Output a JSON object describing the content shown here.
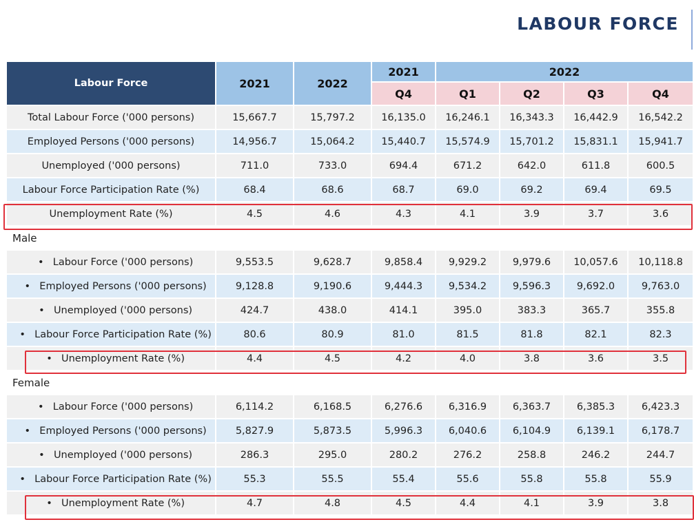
{
  "page_title": "LABOUR FORCE",
  "table": {
    "corner_label": "Labour Force",
    "year_2021": "2021",
    "year_2022": "2022",
    "q_2021_year": "2021",
    "q_2022_year": "2022",
    "quarters": [
      "Q4",
      "Q1",
      "Q2",
      "Q3",
      "Q4"
    ],
    "overall": [
      {
        "label": "Total Labour Force ('000 persons)",
        "values": [
          "15,667.7",
          "15,797.2",
          "16,135.0",
          "16,246.1",
          "16,343.3",
          "16,442.9",
          "16,542.2"
        ]
      },
      {
        "label": "Employed Persons ('000 persons)",
        "values": [
          "14,956.7",
          "15,064.2",
          "15,440.7",
          "15,574.9",
          "15,701.2",
          "15,831.1",
          "15,941.7"
        ]
      },
      {
        "label": "Unemployed ('000 persons)",
        "values": [
          "711.0",
          "733.0",
          "694.4",
          "671.2",
          "642.0",
          "611.8",
          "600.5"
        ]
      },
      {
        "label": "Labour Force Participation Rate (%)",
        "values": [
          "68.4",
          "68.6",
          "68.7",
          "69.0",
          "69.2",
          "69.4",
          "69.5"
        ]
      },
      {
        "label": "Unemployment Rate (%)",
        "values": [
          "4.5",
          "4.6",
          "4.3",
          "4.1",
          "3.9",
          "3.7",
          "3.6"
        ]
      }
    ],
    "male_label": "Male",
    "male": [
      {
        "label": "Labour Force ('000 persons)",
        "values": [
          "9,553.5",
          "9,628.7",
          "9,858.4",
          "9,929.2",
          "9,979.6",
          "10,057.6",
          "10,118.8"
        ]
      },
      {
        "label": "Employed Persons ('000 persons)",
        "values": [
          "9,128.8",
          "9,190.6",
          "9,444.3",
          "9,534.2",
          "9,596.3",
          "9,692.0",
          "9,763.0"
        ]
      },
      {
        "label": "Unemployed ('000 persons)",
        "values": [
          "424.7",
          "438.0",
          "414.1",
          "395.0",
          "383.3",
          "365.7",
          "355.8"
        ]
      },
      {
        "label": "Labour Force Participation Rate (%)",
        "values": [
          "80.6",
          "80.9",
          "81.0",
          "81.5",
          "81.8",
          "82.1",
          "82.3"
        ]
      },
      {
        "label": "Unemployment Rate (%)",
        "values": [
          "4.4",
          "4.5",
          "4.2",
          "4.0",
          "3.8",
          "3.6",
          "3.5"
        ]
      }
    ],
    "female_label": "Female",
    "female": [
      {
        "label": "Labour Force ('000 persons)",
        "values": [
          "6,114.2",
          "6,168.5",
          "6,276.6",
          "6,316.9",
          "6,363.7",
          "6,385.3",
          "6,423.3"
        ]
      },
      {
        "label": "Employed Persons ('000 persons)",
        "values": [
          "5,827.9",
          "5,873.5",
          "5,996.3",
          "6,040.6",
          "6,104.9",
          "6,139.1",
          "6,178.7"
        ]
      },
      {
        "label": "Unemployed ('000 persons)",
        "values": [
          "286.3",
          "295.0",
          "280.2",
          "276.2",
          "258.8",
          "246.2",
          "244.7"
        ]
      },
      {
        "label": "Labour Force Participation Rate (%)",
        "values": [
          "55.3",
          "55.5",
          "55.4",
          "55.6",
          "55.8",
          "55.8",
          "55.9"
        ]
      },
      {
        "label": "Unemployment Rate (%)",
        "values": [
          "4.7",
          "4.8",
          "4.5",
          "4.4",
          "4.1",
          "3.9",
          "3.8"
        ]
      }
    ],
    "bullet": "•",
    "highlight_color": "#e0303a"
  }
}
